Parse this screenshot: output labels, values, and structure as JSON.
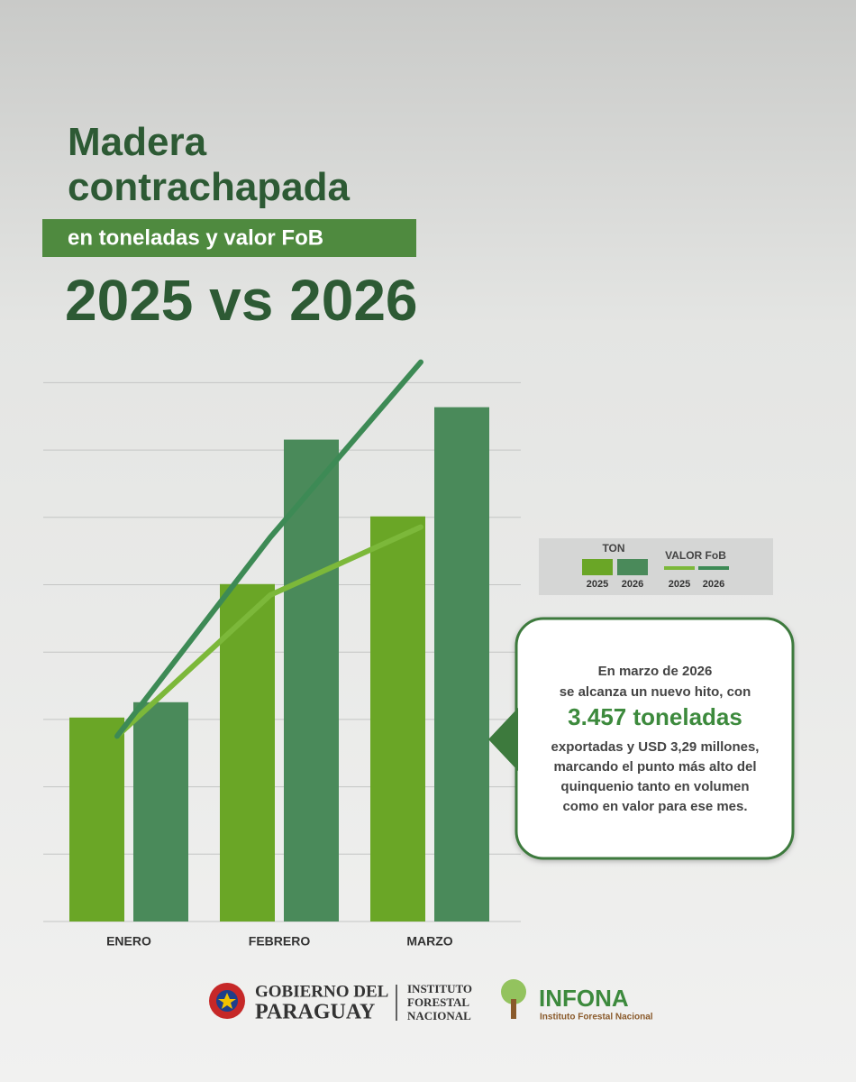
{
  "chart_data": {
    "type": "bar",
    "title": "Madera contrachapada",
    "subtitle": "en toneladas y valor FoB",
    "heading": "2025 vs 2026",
    "categories": [
      "ENERO",
      "FEBRERO",
      "MARZO"
    ],
    "ylim": [
      0,
      4000
    ],
    "y2lim": [
      0,
      3.5
    ],
    "grid": true,
    "legend_groups": [
      "TON",
      "VALOR FoB"
    ],
    "series": [
      {
        "name": "2025",
        "kind": "bar",
        "color": "#6aa626",
        "values": [
          1371,
          2268,
          2723
        ]
      },
      {
        "name": "2026",
        "kind": "bar",
        "color": "#4a8a5a",
        "values": [
          1474,
          3239,
          3457
        ]
      },
      {
        "name": "2025",
        "kind": "line",
        "axis": "y2",
        "color": "#7cb83a",
        "values": [
          1.09,
          1.92,
          2.32
        ]
      },
      {
        "name": "2026",
        "kind": "line",
        "axis": "y2",
        "color": "#3d8a55",
        "values": [
          1.09,
          2.26,
          3.29
        ]
      }
    ],
    "annotation": {
      "lines_before": [
        "En marzo de 2026",
        "se alcanza un nuevo hito, con"
      ],
      "highlight": "3.457 toneladas",
      "lines_after": [
        "exportadas y USD 3,29 millones,",
        "marcando el punto más alto del",
        "quinquenio tanto en volumen",
        "como en valor para ese mes."
      ]
    }
  },
  "footer": {
    "gov_line1": "GOBIERNO DEL",
    "gov_line2": "PARAGUAY",
    "institute_lines": [
      "INSTITUTO",
      "FORESTAL",
      "NACIONAL"
    ],
    "brand": "INFONA",
    "brand_sub": "Instituto Forestal Nacional"
  }
}
